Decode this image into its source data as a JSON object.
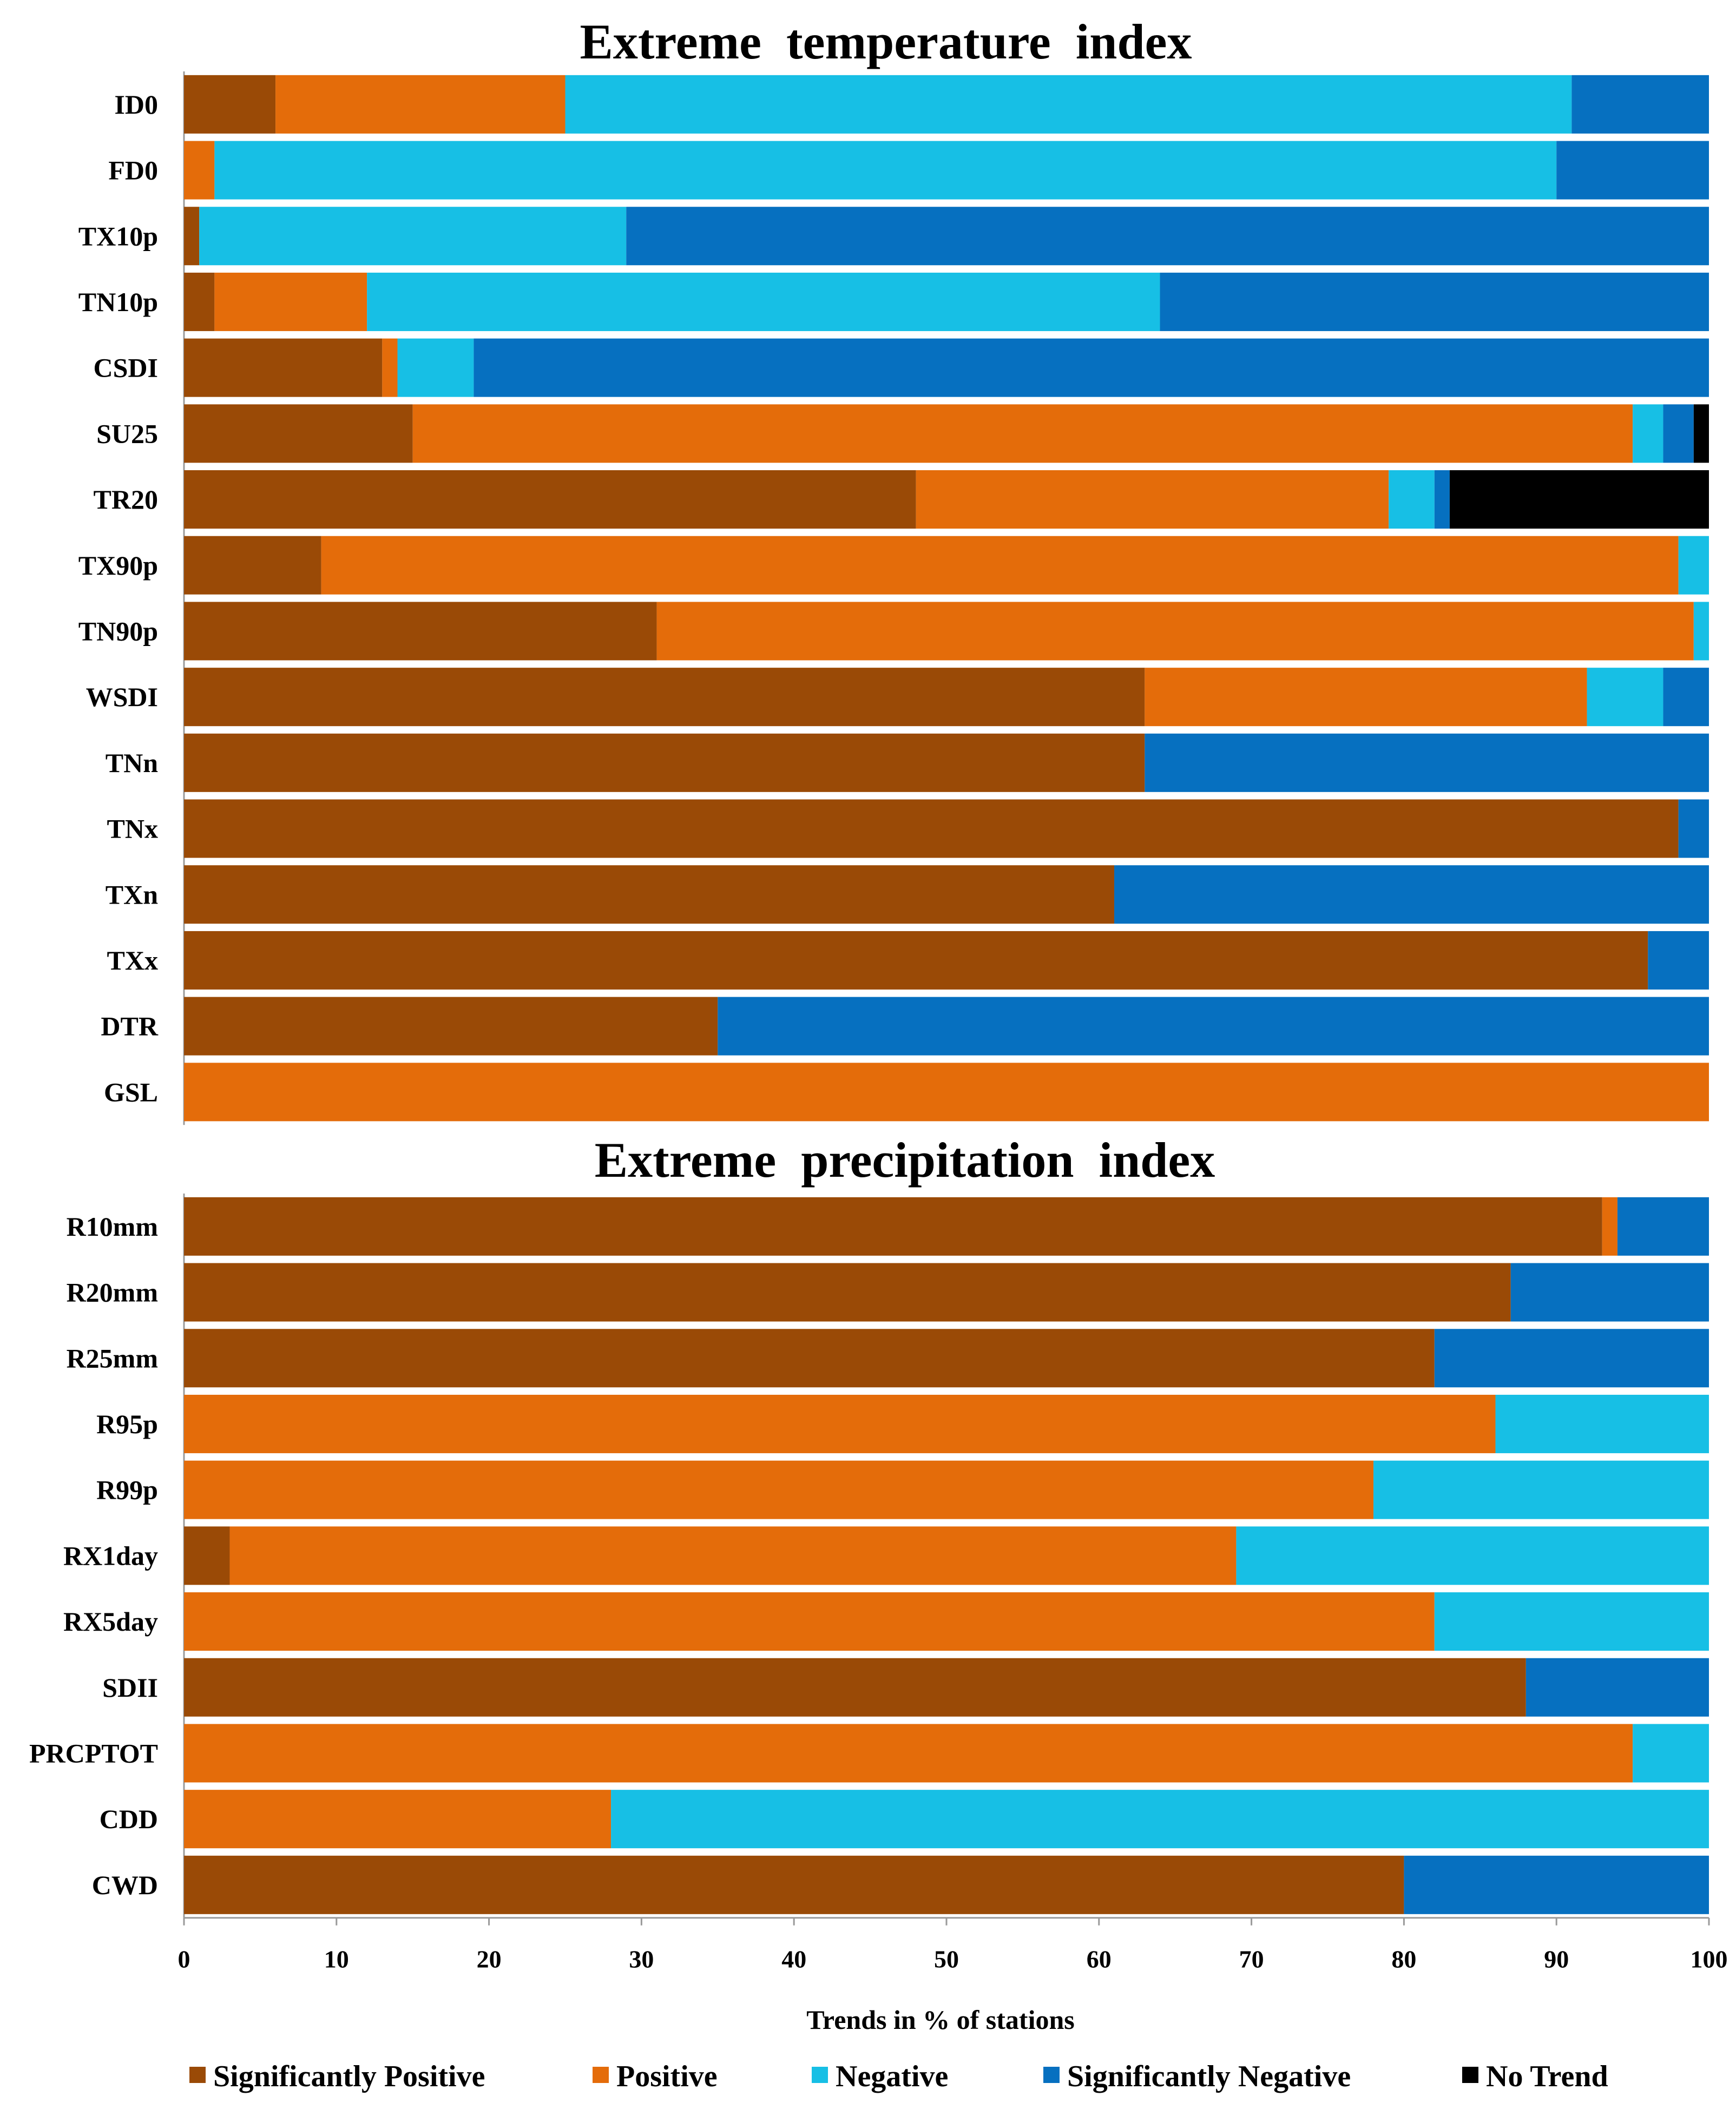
{
  "chart_data": {
    "type": "bar",
    "orientation": "horizontal",
    "stacked": true,
    "xlabel": "Trends in % of stations",
    "xlim": [
      0,
      100
    ],
    "xticks": [
      "0",
      "10",
      "20",
      "30",
      "40",
      "50",
      "60",
      "70",
      "80",
      "90",
      "100"
    ],
    "grid": false,
    "legend_position": "bottom",
    "series_meta": [
      {
        "name": "Significantly Positive",
        "color": "#9A4A06"
      },
      {
        "name": "Positive",
        "color": "#E46C0A"
      },
      {
        "name": "Negative",
        "color": "#17BFE5"
      },
      {
        "name": "Significantly Negative",
        "color": "#0670C0"
      },
      {
        "name": "No Trend",
        "color": "#000000"
      }
    ],
    "panels": [
      {
        "title": "Extreme  temperature  index",
        "categories": [
          "ID0",
          "FD0",
          "TX10p",
          "TN10p",
          "CSDI",
          "SU25",
          "TR20",
          "TX90p",
          "TN90p",
          "WSDI",
          "TNn",
          "TNx",
          "TXn",
          "TXx",
          "DTR",
          "GSL"
        ],
        "series": [
          {
            "name": "Significantly Positive",
            "values": [
              6,
              0,
              1,
              2,
              13,
              15,
              48,
              9,
              31,
              63,
              63,
              98,
              61,
              96,
              35,
              0
            ]
          },
          {
            "name": "Positive",
            "values": [
              19,
              2,
              0,
              10,
              1,
              80,
              31,
              89,
              68,
              29,
              0,
              0,
              0,
              0,
              0,
              100
            ]
          },
          {
            "name": "Negative",
            "values": [
              66,
              88,
              28,
              52,
              5,
              2,
              3,
              2,
              1,
              5,
              0,
              0,
              0,
              0,
              0,
              0
            ]
          },
          {
            "name": "Significantly Negative",
            "values": [
              9,
              10,
              71,
              36,
              81,
              2,
              1,
              0,
              0,
              3,
              37,
              2,
              39,
              4,
              65,
              0
            ]
          },
          {
            "name": "No Trend",
            "values": [
              0,
              0,
              0,
              0,
              0,
              1,
              17,
              0,
              0,
              0,
              0,
              0,
              0,
              0,
              0,
              0
            ]
          }
        ]
      },
      {
        "title": "Extreme  precipitation  index",
        "categories": [
          "R10mm",
          "R20mm",
          "R25mm",
          "R95p",
          "R99p",
          "RX1day",
          "RX5day",
          "SDII",
          "PRCPTOT",
          "CDD",
          "CWD"
        ],
        "series": [
          {
            "name": "Significantly Positive",
            "values": [
              93,
              87,
              82,
              0,
              0,
              3,
              0,
              88,
              0,
              0,
              80
            ]
          },
          {
            "name": "Positive",
            "values": [
              1,
              0,
              0,
              86,
              78,
              66,
              82,
              0,
              95,
              28,
              0
            ]
          },
          {
            "name": "Negative",
            "values": [
              0,
              0,
              0,
              14,
              22,
              31,
              18,
              0,
              5,
              72,
              0
            ]
          },
          {
            "name": "Significantly Negative",
            "values": [
              6,
              13,
              18,
              0,
              0,
              0,
              0,
              12,
              0,
              0,
              20
            ]
          },
          {
            "name": "No Trend",
            "values": [
              0,
              0,
              0,
              0,
              0,
              0,
              0,
              0,
              0,
              0,
              0
            ]
          }
        ]
      }
    ]
  }
}
